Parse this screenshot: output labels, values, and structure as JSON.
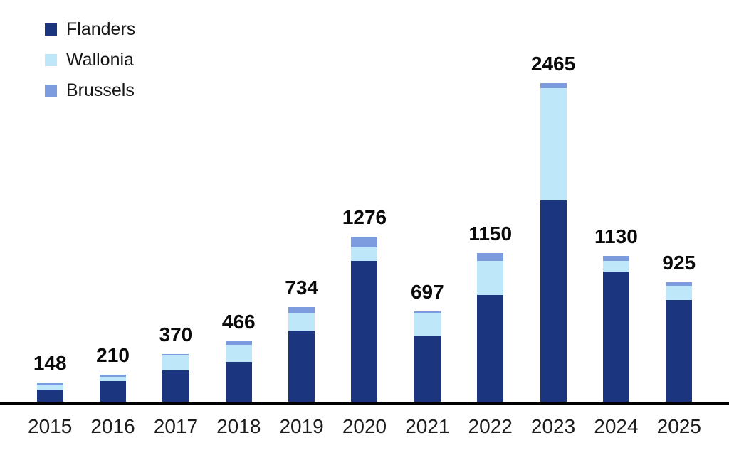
{
  "chart_data": {
    "type": "bar",
    "stacked": true,
    "title": "",
    "xlabel": "",
    "ylabel": "",
    "grid": false,
    "legend_position": "top-left",
    "axis_color": "#000000",
    "categories": [
      "2015",
      "2016",
      "2017",
      "2018",
      "2019",
      "2020",
      "2021",
      "2022",
      "2023",
      "2024",
      "2025"
    ],
    "series": [
      {
        "name": "Flanders",
        "color": "#1B357E",
        "values": [
          91,
          159,
          240,
          310,
          549,
          1089,
          510,
          823,
          1555,
          1005,
          785
        ]
      },
      {
        "name": "Wallonia",
        "color": "#BEE8FA",
        "values": [
          40,
          33,
          118,
          130,
          140,
          105,
          176,
          268,
          870,
          85,
          111
        ]
      },
      {
        "name": "Brussels",
        "color": "#7D9CE0",
        "values": [
          17,
          18,
          12,
          26,
          45,
          82,
          11,
          59,
          40,
          40,
          29
        ]
      }
    ],
    "totals": [
      148,
      210,
      370,
      466,
      734,
      1276,
      697,
      1150,
      2465,
      1130,
      925
    ],
    "ylim": [
      0,
      2600
    ]
  }
}
